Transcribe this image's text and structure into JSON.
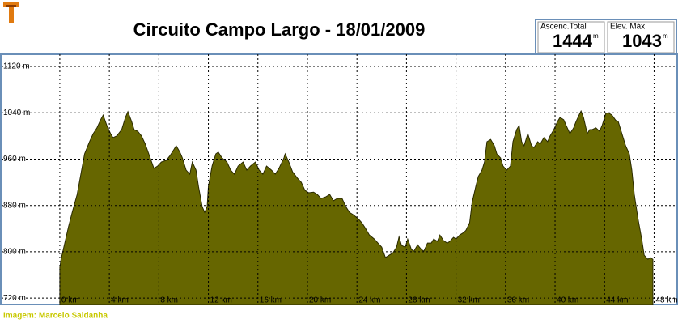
{
  "chart_data": {
    "type": "area",
    "title": "Circuito Campo Largo - 18/01/2009",
    "xlim": [
      -4.7,
      49.8
    ],
    "ylim": [
      709,
      1141
    ],
    "xticks": [
      {
        "value": 0,
        "label": "0 km"
      },
      {
        "value": 4,
        "label": "4 km"
      },
      {
        "value": 8,
        "label": "8 km"
      },
      {
        "value": 12,
        "label": "12 km"
      },
      {
        "value": 16,
        "label": "16 km"
      },
      {
        "value": 20,
        "label": "20 km"
      },
      {
        "value": 24,
        "label": "24 km"
      },
      {
        "value": 28,
        "label": "28 km"
      },
      {
        "value": 32,
        "label": "32 km"
      },
      {
        "value": 36,
        "label": "36 km"
      },
      {
        "value": 40,
        "label": "40 km"
      },
      {
        "value": 44,
        "label": "44 km"
      },
      {
        "value": 48,
        "label": "48 km"
      }
    ],
    "yticks": [
      {
        "value": 720,
        "label": "720 m"
      },
      {
        "value": 800,
        "label": "800 m"
      },
      {
        "value": 880,
        "label": "880 m"
      },
      {
        "value": 960,
        "label": "960 m"
      },
      {
        "value": 1040,
        "label": "1040 m"
      },
      {
        "value": 1120,
        "label": "1120 m"
      }
    ],
    "grid": true,
    "series": [
      {
        "color": "#666600",
        "x": [
          0.0,
          0.1,
          0.4,
          0.7,
          1.0,
          1.4,
          1.7,
          2.0,
          2.4,
          2.7,
          3.0,
          3.3,
          3.5,
          3.8,
          4.1,
          4.3,
          4.6,
          5.0,
          5.3,
          5.5,
          5.8,
          6.0,
          6.3,
          6.6,
          6.9,
          7.3,
          7.6,
          7.9,
          8.2,
          8.6,
          8.9,
          9.2,
          9.4,
          9.7,
          9.9,
          10.2,
          10.5,
          10.7,
          11.0,
          11.2,
          11.5,
          11.7,
          11.9,
          12.0,
          12.3,
          12.6,
          12.8,
          13.1,
          13.5,
          13.8,
          14.1,
          14.4,
          14.8,
          15.1,
          15.4,
          15.8,
          16.1,
          16.4,
          16.7,
          17.1,
          17.4,
          17.7,
          18.1,
          18.2,
          18.5,
          18.8,
          19.2,
          19.5,
          19.8,
          20.1,
          20.5,
          20.8,
          21.1,
          21.5,
          21.8,
          22.1,
          22.4,
          22.8,
          23.1,
          23.4,
          23.7,
          24.1,
          24.4,
          24.7,
          25.0,
          25.4,
          25.7,
          26.0,
          26.3,
          26.6,
          26.9,
          27.2,
          27.4,
          27.6,
          27.9,
          28.1,
          28.4,
          28.6,
          28.9,
          29.2,
          29.4,
          29.7,
          30.0,
          30.2,
          30.5,
          30.7,
          31.0,
          31.3,
          31.5,
          31.8,
          32.0,
          32.3,
          32.6,
          32.8,
          33.1,
          33.3,
          33.6,
          33.8,
          34.1,
          34.3,
          34.5,
          34.8,
          35.1,
          35.3,
          35.6,
          35.8,
          36.1,
          36.4,
          36.6,
          36.9,
          37.1,
          37.3,
          37.5,
          37.8,
          38.1,
          38.3,
          38.6,
          38.8,
          39.1,
          39.4,
          39.6,
          39.9,
          40.2,
          40.4,
          40.7,
          40.9,
          41.2,
          41.5,
          41.7,
          42.0,
          42.1,
          42.3,
          42.6,
          42.8,
          43.0,
          43.3,
          43.6,
          43.8,
          44.1,
          44.3,
          44.6,
          44.9,
          45.1,
          45.4,
          45.7,
          46.0,
          46.2,
          46.4,
          46.7,
          47.0,
          47.2,
          47.5,
          47.7,
          47.9
        ],
        "values": [
          773,
          787,
          815,
          843,
          868,
          899,
          934,
          969,
          990,
          1004,
          1014,
          1028,
          1036,
          1018,
          1004,
          997,
          1000,
          1011,
          1032,
          1042,
          1025,
          1011,
          1008,
          1000,
          986,
          962,
          944,
          948,
          955,
          958,
          966,
          976,
          983,
          972,
          962,
          941,
          934,
          955,
          941,
          913,
          878,
          868,
          878,
          913,
          948,
          969,
          972,
          962,
          955,
          941,
          934,
          948,
          955,
          941,
          948,
          955,
          941,
          934,
          948,
          941,
          934,
          944,
          962,
          969,
          955,
          938,
          927,
          920,
          906,
          902,
          903,
          899,
          892,
          895,
          899,
          888,
          892,
          892,
          878,
          868,
          864,
          857,
          850,
          840,
          829,
          822,
          815,
          808,
          790,
          794,
          798,
          808,
          826,
          811,
          808,
          822,
          804,
          801,
          812,
          804,
          801,
          815,
          815,
          822,
          818,
          829,
          819,
          815,
          818,
          825,
          822,
          829,
          833,
          837,
          850,
          885,
          913,
          930,
          941,
          955,
          990,
          994,
          983,
          969,
          962,
          948,
          941,
          948,
          990,
          1011,
          1018,
          990,
          983,
          1004,
          983,
          980,
          990,
          986,
          997,
          990,
          1000,
          1011,
          1025,
          1032,
          1028,
          1018,
          1004,
          1014,
          1025,
          1039,
          1043,
          1032,
          1004,
          1011,
          1011,
          1014,
          1008,
          1018,
          1039,
          1040,
          1036,
          1027,
          1025,
          1004,
          983,
          969,
          941,
          899,
          857,
          822,
          794,
          787,
          790,
          787
        ]
      }
    ]
  },
  "stats": [
    {
      "label": "Ascenc.Total",
      "value": 1444,
      "unit": "m"
    },
    {
      "label": "Elev. Máx.",
      "value": 1043,
      "unit": "m"
    }
  ],
  "credit": "Imagem: Marcelo Saldanha"
}
